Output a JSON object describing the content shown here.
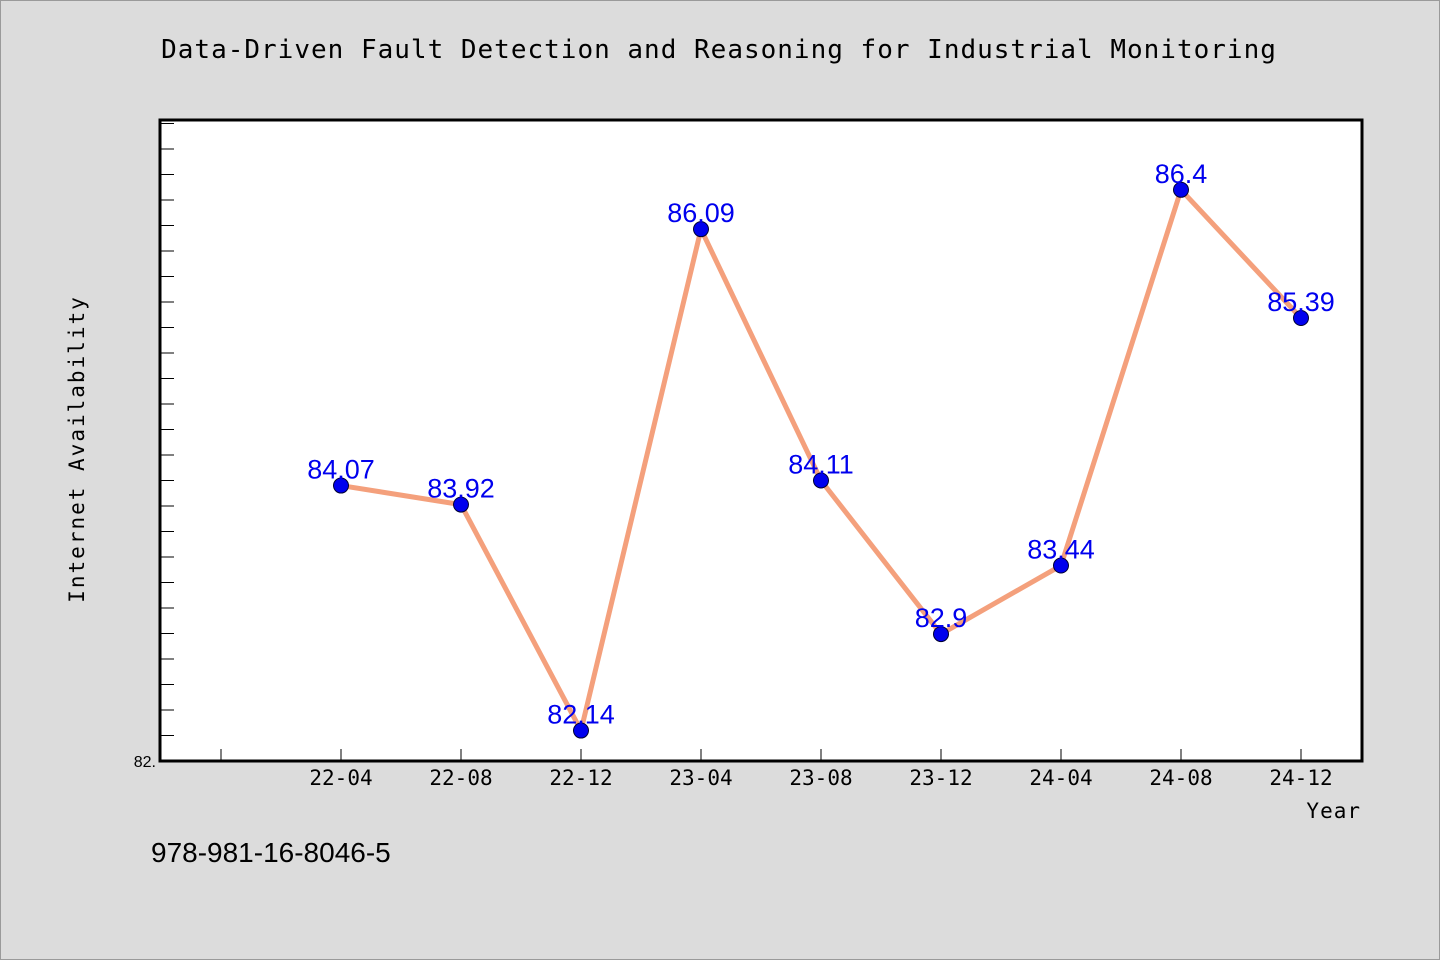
{
  "page": {
    "background": "#dcdcdc",
    "footer_text": "978-981-16-8046-5"
  },
  "chart_data": {
    "type": "line",
    "title": "Data-Driven Fault Detection and Reasoning for Industrial Monitoring",
    "xlabel": "Year",
    "ylabel": "Internet Availability",
    "categories": [
      "22-04",
      "22-08",
      "22-12",
      "23-04",
      "23-08",
      "23-12",
      "24-04",
      "24-08",
      "24-12"
    ],
    "y_tick_labels": [
      "82."
    ],
    "series": [
      {
        "values": [
          84.07,
          83.92,
          82.14,
          86.09,
          84.11,
          82.9,
          83.44,
          86.4,
          85.39
        ],
        "data_labels": [
          "84.07",
          "83.92",
          "82.14",
          "86.09",
          "84.11",
          "82.9",
          "83.44",
          "86.4",
          "85.39"
        ],
        "line_color": "#f4a07c",
        "marker_color": "#0000ee",
        "label_color": "#0000ee"
      }
    ],
    "ylim": [
      81.9,
      86.95
    ],
    "grid": false,
    "legend": "none"
  }
}
